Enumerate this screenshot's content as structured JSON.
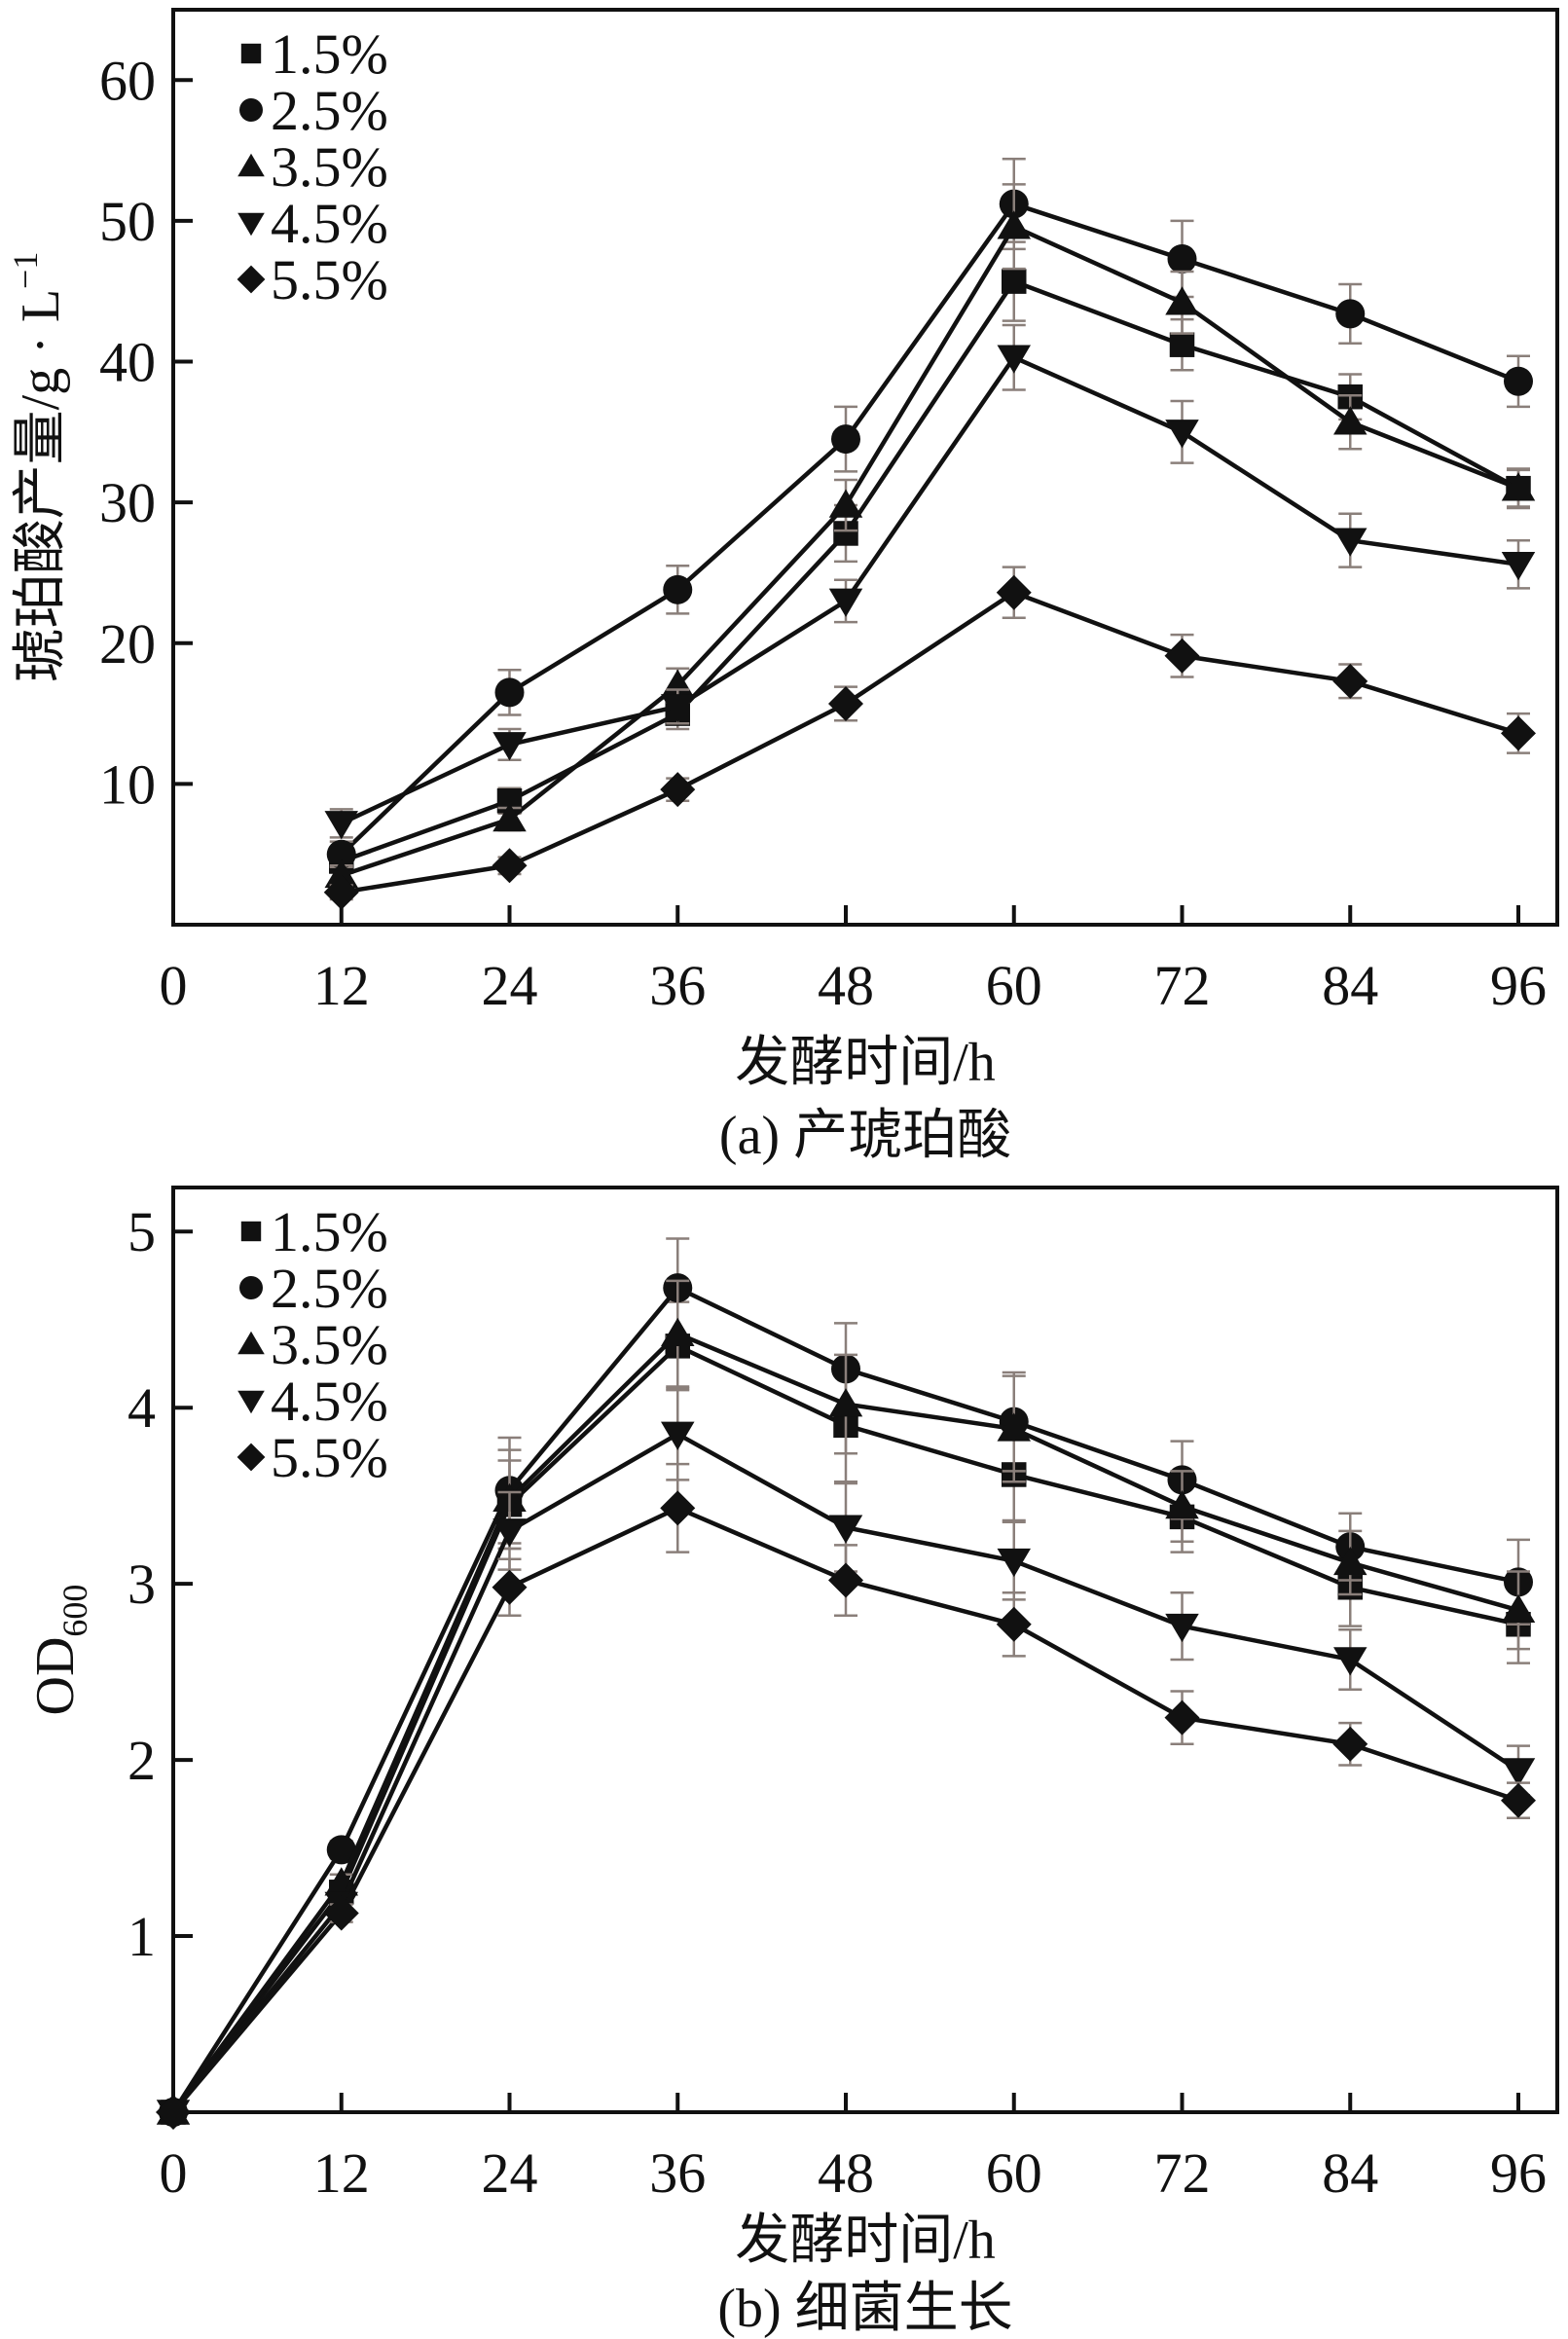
{
  "chart_data": [
    {
      "id": "a",
      "type": "line",
      "title": "",
      "caption": "(a) 产琥珀酸",
      "xlabel": "发酵时间/h",
      "ylabel": "琥珀酸产量/g · L",
      "ylabel_superscript": "−1",
      "xlim": [
        0,
        96
      ],
      "ylim": [
        0,
        65
      ],
      "xticks": [
        0,
        12,
        24,
        36,
        48,
        60,
        72,
        84,
        96
      ],
      "xtick_labels": [
        "0",
        "12",
        "24",
        "36",
        "48",
        "60",
        "72",
        "84",
        "96"
      ],
      "yticks": [
        10,
        20,
        30,
        40,
        50,
        60
      ],
      "ytick_labels": [
        "10",
        "20",
        "30",
        "40",
        "50",
        "60"
      ],
      "grid": false,
      "legend_position": "top-left",
      "x": [
        12,
        24,
        36,
        48,
        60,
        72,
        84,
        96
      ],
      "series": [
        {
          "name": "1.5%",
          "marker": "square",
          "values": [
            4.5,
            8.8,
            15.0,
            27.8,
            45.7,
            41.2,
            37.5,
            31.0
          ],
          "error": [
            0.8,
            0.9,
            1.1,
            2.0,
            2.8,
            1.8,
            1.6,
            1.4
          ]
        },
        {
          "name": "2.5%",
          "marker": "circle",
          "values": [
            5.0,
            16.5,
            23.8,
            34.5,
            51.2,
            47.3,
            43.4,
            38.6
          ],
          "error": [
            0.9,
            1.6,
            1.7,
            2.3,
            3.2,
            2.7,
            2.1,
            1.8
          ]
        },
        {
          "name": "3.5%",
          "marker": "triangle-up",
          "values": [
            3.5,
            7.5,
            17.0,
            29.8,
            49.6,
            44.2,
            35.7,
            31.0
          ],
          "error": [
            0.7,
            0.8,
            1.2,
            1.8,
            3.0,
            2.2,
            1.9,
            1.3
          ]
        },
        {
          "name": "4.5%",
          "marker": "triangle-down",
          "values": [
            7.2,
            12.8,
            15.5,
            23.0,
            40.3,
            35.0,
            27.3,
            25.6
          ],
          "error": [
            1.0,
            1.1,
            1.2,
            1.5,
            2.3,
            2.2,
            1.9,
            1.7
          ]
        },
        {
          "name": "5.5%",
          "marker": "diamond",
          "values": [
            2.3,
            4.2,
            9.6,
            15.7,
            23.6,
            19.1,
            17.3,
            13.6
          ],
          "error": [
            0.5,
            0.6,
            0.8,
            1.2,
            1.8,
            1.5,
            1.2,
            1.4
          ]
        }
      ]
    },
    {
      "id": "b",
      "type": "line",
      "title": "",
      "caption": "(b) 细菌生长",
      "xlabel": "发酵时间/h",
      "ylabel": "OD",
      "ylabel_subscript": "600",
      "xlim": [
        0,
        96
      ],
      "ylim": [
        0,
        5.25
      ],
      "xticks": [
        0,
        12,
        24,
        36,
        48,
        60,
        72,
        84,
        96
      ],
      "xtick_labels": [
        "0",
        "12",
        "24",
        "36",
        "48",
        "60",
        "72",
        "84",
        "96"
      ],
      "yticks": [
        1,
        2,
        3,
        4,
        5
      ],
      "ytick_labels": [
        "1",
        "2",
        "3",
        "4",
        "5"
      ],
      "grid": false,
      "legend_position": "top-left",
      "x": [
        0,
        12,
        24,
        36,
        48,
        60,
        72,
        84,
        96
      ],
      "series": [
        {
          "name": "1.5%",
          "marker": "square",
          "values": [
            0,
            1.25,
            3.45,
            4.35,
            3.9,
            3.62,
            3.38,
            2.98,
            2.77
          ],
          "error": [
            0,
            0.05,
            0.25,
            0.25,
            0.32,
            0.26,
            0.2,
            0.22,
            0.22
          ]
        },
        {
          "name": "2.5%",
          "marker": "circle",
          "values": [
            0,
            1.49,
            3.53,
            4.68,
            4.22,
            3.92,
            3.59,
            3.21,
            3.01
          ],
          "error": [
            0,
            0.05,
            0.3,
            0.28,
            0.26,
            0.28,
            0.22,
            0.19,
            0.24
          ]
        },
        {
          "name": "3.5%",
          "marker": "triangle-up",
          "values": [
            0,
            1.3,
            3.48,
            4.42,
            4.02,
            3.88,
            3.44,
            3.12,
            2.85
          ],
          "error": [
            0,
            0.05,
            0.28,
            0.3,
            0.28,
            0.3,
            0.2,
            0.18,
            0.22
          ]
        },
        {
          "name": "4.5%",
          "marker": "triangle-down",
          "values": [
            0,
            1.18,
            3.3,
            3.85,
            3.32,
            3.13,
            2.76,
            2.57,
            1.94
          ],
          "error": [
            0,
            0.05,
            0.22,
            0.26,
            0.25,
            0.22,
            0.19,
            0.17,
            0.14
          ]
        },
        {
          "name": "5.5%",
          "marker": "diamond",
          "values": [
            0,
            1.13,
            2.98,
            3.43,
            3.02,
            2.77,
            2.24,
            2.09,
            1.77
          ],
          "error": [
            0,
            0.05,
            0.16,
            0.25,
            0.2,
            0.18,
            0.15,
            0.12,
            0.1
          ]
        }
      ]
    }
  ]
}
